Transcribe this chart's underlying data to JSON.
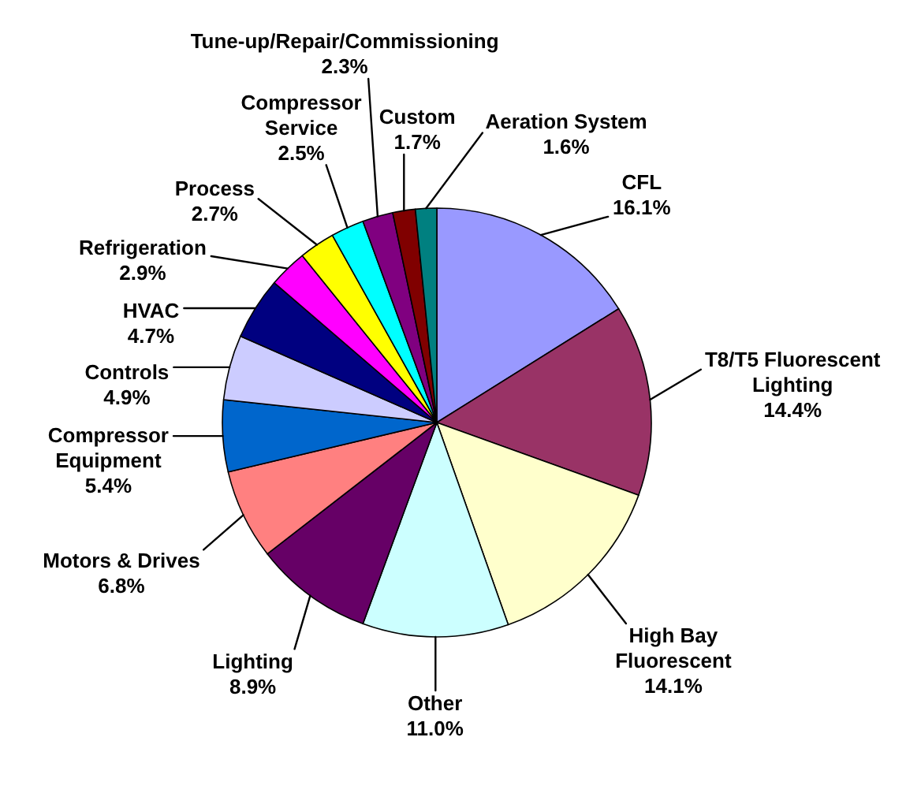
{
  "chart_data": {
    "type": "pie",
    "categories": [
      "CFL",
      "T8/T5 Fluorescent Lighting",
      "High Bay Fluorescent",
      "Other",
      "Lighting",
      "Motors & Drives",
      "Compressor Equipment",
      "Controls",
      "HVAC",
      "Refrigeration",
      "Process",
      "Compressor Service",
      "Tune-up/Repair/Commissioning",
      "Custom",
      "Aeration System"
    ],
    "values": [
      16.1,
      14.4,
      14.1,
      11.0,
      8.9,
      6.8,
      5.4,
      4.9,
      4.7,
      2.9,
      2.7,
      2.5,
      2.3,
      1.7,
      1.6
    ],
    "value_labels": [
      "16.1%",
      "14.4%",
      "14.1%",
      "11.0%",
      "8.9%",
      "6.8%",
      "5.4%",
      "4.9%",
      "4.7%",
      "2.9%",
      "2.7%",
      "2.5%",
      "2.3%",
      "1.7%",
      "1.6%"
    ],
    "colors": [
      "#9999ff",
      "#993366",
      "#ffffcc",
      "#ccffff",
      "#660066",
      "#ff8080",
      "#0066cc",
      "#ccccff",
      "#000080",
      "#ff00ff",
      "#ffff00",
      "#00ffff",
      "#800080",
      "#800000",
      "#008080"
    ]
  }
}
